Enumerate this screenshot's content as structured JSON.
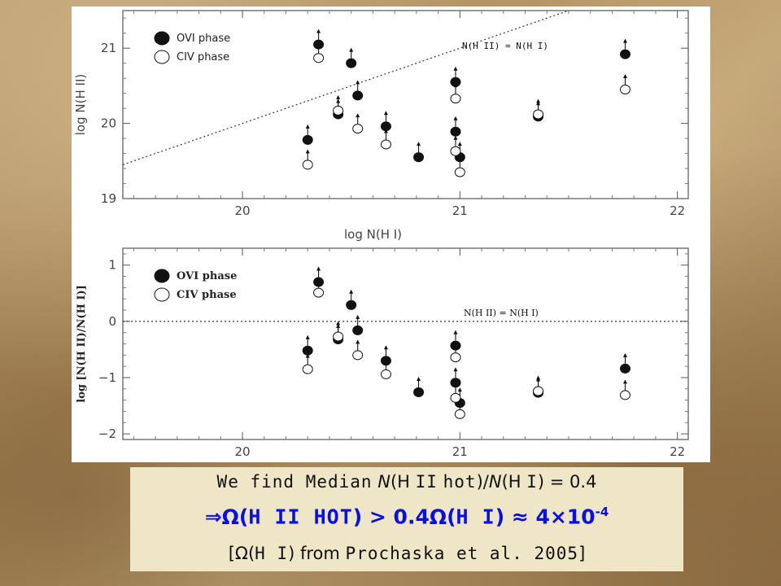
{
  "chart_data": [
    {
      "type": "scatter",
      "xlabel": "log N(H I)",
      "ylabel": "log N(H II)",
      "xlim": [
        19.45,
        22.05
      ],
      "ylim": [
        19,
        21.5
      ],
      "xticks": [
        "20",
        "21",
        "22"
      ],
      "yticks": [
        "19",
        "20",
        "21"
      ],
      "legend": {
        "placement": "top-left",
        "entries": [
          "OVI phase",
          "CIV phase"
        ]
      },
      "reference_line": {
        "label": "N(H II) = N(H I)",
        "style": "dotted",
        "slope": 1,
        "intercept": 0
      },
      "series": [
        {
          "name": "OVI phase",
          "marker": "filled-circle",
          "lower_limit": true,
          "x": [
            20.3,
            20.35,
            20.44,
            20.5,
            20.53,
            20.66,
            20.81,
            20.98,
            20.98,
            21.0,
            21.36,
            21.76
          ],
          "y": [
            19.78,
            21.05,
            20.12,
            20.8,
            20.37,
            19.96,
            19.55,
            20.55,
            19.89,
            19.55,
            20.09,
            20.92
          ]
        },
        {
          "name": "CIV phase",
          "marker": "open-circle",
          "lower_limit": true,
          "x": [
            20.3,
            20.35,
            20.44,
            20.53,
            20.66,
            20.98,
            20.98,
            21.0,
            21.36,
            21.76
          ],
          "y": [
            19.45,
            20.87,
            20.17,
            19.93,
            19.72,
            20.33,
            19.63,
            19.35,
            20.12,
            20.45
          ]
        }
      ]
    },
    {
      "type": "scatter",
      "xlabel": "",
      "ylabel": "log [N(H II)/N(H I)]",
      "xlim": [
        19.45,
        22.05
      ],
      "ylim": [
        -2.1,
        1.3
      ],
      "xticks": [
        "20",
        "21",
        "22"
      ],
      "yticks": [
        "1",
        "0",
        "−1",
        "−2"
      ],
      "legend": {
        "placement": "top-left",
        "entries": [
          "OVI phase",
          "CIV phase"
        ]
      },
      "reference_line": {
        "label": "N(H II) = N(H I)",
        "style": "dotted",
        "slope": 0,
        "intercept": 0
      },
      "series": [
        {
          "name": "OVI phase",
          "marker": "filled-circle",
          "lower_limit": true,
          "x": [
            20.3,
            20.35,
            20.44,
            20.5,
            20.53,
            20.66,
            20.81,
            20.98,
            20.98,
            21.0,
            21.36,
            21.76
          ],
          "y": [
            -0.52,
            0.7,
            -0.32,
            0.29,
            -0.16,
            -0.7,
            -1.26,
            -0.43,
            -1.09,
            -1.45,
            -1.27,
            -0.84
          ]
        },
        {
          "name": "CIV phase",
          "marker": "open-circle",
          "lower_limit": true,
          "x": [
            20.3,
            20.35,
            20.44,
            20.53,
            20.66,
            20.98,
            20.98,
            21.0,
            21.36,
            21.76
          ],
          "y": [
            -0.85,
            0.51,
            -0.27,
            -0.6,
            -0.94,
            -0.64,
            -1.36,
            -1.65,
            -1.24,
            -1.31
          ]
        }
      ]
    }
  ],
  "text_box": {
    "line1": {
      "we_find": "We find Median",
      "n1": "N",
      "h2_open": "(H",
      "h2_roman": "II",
      "hot": "hot",
      "close_div": ")/",
      "n2": "N",
      "h1_open": "(H",
      "h1_roman": "I",
      "eq": ") = 0.4"
    },
    "line2": {
      "implies": "⇒Ω(",
      "h2hot": "H II HOT",
      "mid": ") > 0.4Ω(",
      "h1": "H I",
      "approx": ") ≈ 4×10",
      "exp": "-4"
    },
    "line3": {
      "open": "[Ω(",
      "h1": "H I",
      "from": ") from",
      "source": "Prochaska et al. 2005",
      "close": "]"
    }
  }
}
